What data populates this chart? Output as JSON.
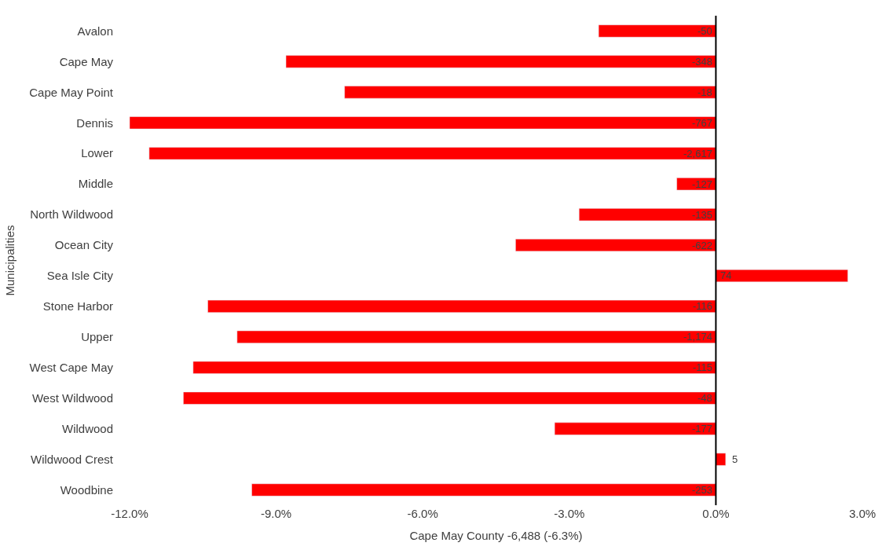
{
  "chart_data": {
    "type": "bar",
    "orientation": "horizontal",
    "xlabel": "Cape May County -6,488 (-6.3%)",
    "ylabel": "Municipalities",
    "categories": [
      "Avalon",
      "Cape May",
      "Cape May Point",
      "Dennis",
      "Lower",
      "Middle",
      "North Wildwood",
      "Ocean City",
      "Sea Isle City",
      "Stone Harbor",
      "Upper",
      "West Cape May",
      "West Wildwood",
      "Wildwood",
      "Wildwood Crest",
      "Woodbine"
    ],
    "values": [
      -2.4,
      -8.8,
      -7.6,
      -12.0,
      -11.6,
      -0.8,
      -2.8,
      -4.1,
      2.7,
      -10.4,
      -9.8,
      -10.7,
      -10.9,
      -3.3,
      0.2,
      -9.5
    ],
    "annotations": [
      "-50",
      "-348",
      "-18",
      "-767",
      "-2,617",
      "-127",
      "-135",
      "-622",
      "74",
      "-116",
      "-1,174",
      "-115",
      "-48",
      "-177",
      "5",
      "-253"
    ],
    "grid": false,
    "color": "#ff0000",
    "xlim": [
      -12,
      3
    ],
    "xticks": [
      {
        "value": -12,
        "label": "-12.0%"
      },
      {
        "value": -9,
        "label": "-9.0%"
      },
      {
        "value": -6,
        "label": "-6.0%"
      },
      {
        "value": -3,
        "label": "-3.0%"
      },
      {
        "value": 0,
        "label": "0.0%"
      },
      {
        "value": 3,
        "label": "3.0%"
      }
    ],
    "ref_lines": [
      {
        "axis": "x",
        "value": 0,
        "color": "#000000"
      }
    ],
    "legend": false
  }
}
